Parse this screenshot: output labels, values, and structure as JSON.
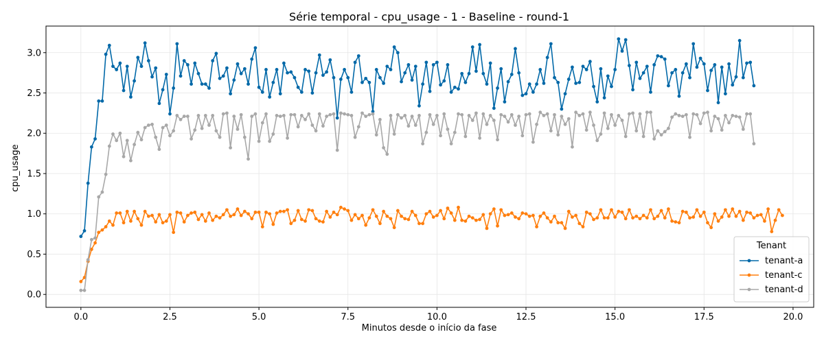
{
  "chart_data": {
    "type": "line",
    "title": "Série temporal - cpu_usage - 1 - Baseline - round-1",
    "xlabel": "Minutos desde o início da fase",
    "ylabel": "cpu_usage",
    "xlim": [
      -0.98,
      20.58
    ],
    "ylim": [
      -0.16,
      3.33
    ],
    "xticks": [
      0,
      2.5,
      5,
      7.5,
      10,
      12.5,
      15,
      17.5,
      20
    ],
    "xtick_labels": [
      "0.0",
      "2.5",
      "5.0",
      "7.5",
      "10.0",
      "12.5",
      "15.0",
      "17.5",
      "20.0"
    ],
    "yticks": [
      0,
      0.5,
      1,
      1.5,
      2,
      2.5,
      3
    ],
    "ytick_labels": [
      "0.0",
      "0.5",
      "1.0",
      "1.5",
      "2.0",
      "2.5",
      "3.0"
    ],
    "grid": true,
    "legend": {
      "title": "Tenant",
      "position": "lower-right"
    },
    "x_step": 0.1,
    "series": [
      {
        "name": "tenant-a",
        "color": "#0068a8",
        "values": [
          0.72,
          0.79,
          1.38,
          1.83,
          1.93,
          2.4,
          2.4,
          2.98,
          3.09,
          2.83,
          2.79,
          2.87,
          2.53,
          2.83,
          2.45,
          2.65,
          2.94,
          2.83,
          3.12,
          2.9,
          2.7,
          2.81,
          2.37,
          2.54,
          2.73,
          2.24,
          2.56,
          3.11,
          2.71,
          2.9,
          2.85,
          2.61,
          2.87,
          2.74,
          2.61,
          2.61,
          2.56,
          2.9,
          2.99,
          2.68,
          2.71,
          2.81,
          2.49,
          2.66,
          2.86,
          2.74,
          2.8,
          2.61,
          2.92,
          3.06,
          2.57,
          2.51,
          2.79,
          2.45,
          2.63,
          2.79,
          2.49,
          2.87,
          2.75,
          2.76,
          2.69,
          2.57,
          2.51,
          2.79,
          2.77,
          2.5,
          2.75,
          2.97,
          2.72,
          2.76,
          2.91,
          2.69,
          2.19,
          2.67,
          2.79,
          2.69,
          2.51,
          2.88,
          2.96,
          2.63,
          2.68,
          2.63,
          2.27,
          2.79,
          2.69,
          2.62,
          2.83,
          2.79,
          3.07,
          3.0,
          2.64,
          2.75,
          2.85,
          2.66,
          2.83,
          2.34,
          2.61,
          2.88,
          2.52,
          2.85,
          2.88,
          2.6,
          2.65,
          2.85,
          2.51,
          2.57,
          2.55,
          2.74,
          2.63,
          2.74,
          3.07,
          2.77,
          3.1,
          2.74,
          2.61,
          2.87,
          2.31,
          2.56,
          2.8,
          2.39,
          2.64,
          2.73,
          3.05,
          2.75,
          2.47,
          2.49,
          2.61,
          2.51,
          2.61,
          2.79,
          2.62,
          2.94,
          3.11,
          2.69,
          2.63,
          2.3,
          2.49,
          2.67,
          2.82,
          2.62,
          2.63,
          2.83,
          2.79,
          2.89,
          2.58,
          2.39,
          2.8,
          2.44,
          2.71,
          2.58,
          2.79,
          3.17,
          3.02,
          3.16,
          2.84,
          2.54,
          2.88,
          2.68,
          2.75,
          2.83,
          2.51,
          2.85,
          2.96,
          2.95,
          2.92,
          2.59,
          2.75,
          2.79,
          2.46,
          2.75,
          2.86,
          2.69,
          3.11,
          2.82,
          2.93,
          2.86,
          2.53,
          2.78,
          2.85,
          2.38,
          2.82,
          2.49,
          2.86,
          2.6,
          2.7,
          3.15,
          2.69,
          2.87,
          2.88,
          2.59
        ]
      },
      {
        "name": "tenant-c",
        "color": "#ff7f0e",
        "values": [
          0.16,
          0.21,
          0.41,
          0.56,
          0.64,
          0.77,
          0.8,
          0.84,
          0.91,
          0.86,
          1.01,
          1.01,
          0.89,
          1.03,
          0.91,
          1.03,
          0.94,
          0.86,
          1.03,
          0.97,
          0.98,
          0.9,
          0.99,
          0.89,
          0.91,
          0.99,
          0.77,
          1.02,
          1.01,
          0.9,
          0.98,
          1.01,
          1.02,
          0.93,
          0.99,
          0.91,
          1.01,
          0.92,
          0.97,
          0.95,
          0.99,
          1.05,
          0.97,
          0.99,
          1.06,
          0.98,
          1.03,
          1.0,
          0.94,
          1.02,
          1.02,
          0.84,
          1.02,
          1.0,
          0.87,
          1.01,
          1.03,
          1.03,
          1.05,
          0.88,
          0.92,
          1.04,
          0.93,
          0.91,
          1.05,
          1.04,
          0.94,
          0.91,
          0.9,
          1.03,
          0.96,
          1.02,
          0.99,
          1.08,
          1.06,
          1.04,
          0.92,
          0.99,
          0.94,
          0.98,
          0.86,
          0.95,
          1.05,
          0.97,
          0.88,
          1.03,
          0.97,
          0.94,
          0.83,
          1.04,
          0.97,
          0.94,
          0.93,
          1.03,
          0.98,
          0.88,
          0.88,
          1.0,
          1.03,
          0.96,
          0.98,
          1.04,
          0.94,
          1.07,
          1.01,
          0.92,
          1.08,
          0.92,
          0.91,
          0.97,
          0.95,
          0.92,
          0.93,
          0.99,
          0.82,
          1.0,
          1.06,
          0.85,
          1.05,
          0.98,
          0.99,
          1.01,
          0.96,
          0.94,
          1.01,
          1.0,
          0.97,
          0.98,
          0.84,
          0.97,
          1.01,
          0.95,
          0.9,
          0.97,
          0.89,
          0.89,
          0.82,
          1.03,
          0.96,
          0.98,
          0.88,
          0.84,
          1.02,
          1.0,
          0.93,
          0.95,
          1.05,
          0.95,
          0.95,
          1.05,
          0.96,
          1.03,
          1.02,
          0.94,
          1.05,
          0.95,
          0.97,
          0.94,
          0.98,
          0.95,
          1.05,
          0.94,
          0.97,
          1.04,
          0.95,
          1.06,
          0.91,
          0.9,
          0.89,
          1.03,
          1.02,
          0.95,
          0.96,
          1.05,
          0.97,
          1.02,
          0.89,
          0.83,
          1.0,
          0.91,
          0.96,
          1.05,
          0.97,
          1.06,
          0.97,
          1.03,
          0.92,
          1.02,
          1.01,
          0.95,
          0.98,
          0.99,
          0.91,
          1.06,
          0.78,
          0.92,
          1.05,
          0.98
        ]
      },
      {
        "name": "tenant-d",
        "color": "#a8a8a8",
        "values": [
          0.05,
          0.05,
          0.43,
          0.68,
          0.7,
          1.21,
          1.27,
          1.49,
          1.84,
          1.99,
          1.91,
          2.0,
          1.71,
          1.91,
          1.66,
          1.86,
          2.01,
          1.92,
          2.07,
          2.1,
          2.11,
          1.95,
          1.8,
          2.07,
          2.1,
          1.97,
          2.03,
          2.22,
          2.17,
          2.21,
          2.21,
          1.93,
          2.04,
          2.22,
          2.06,
          2.22,
          2.1,
          2.22,
          2.03,
          1.95,
          2.24,
          2.25,
          1.82,
          2.21,
          2.05,
          2.23,
          1.95,
          1.68,
          2.21,
          2.24,
          1.9,
          2.13,
          2.24,
          1.9,
          1.99,
          2.22,
          2.21,
          2.22,
          1.94,
          2.23,
          2.23,
          2.08,
          2.22,
          2.17,
          2.24,
          2.1,
          2.03,
          2.24,
          2.09,
          2.21,
          2.23,
          2.24,
          1.79,
          2.25,
          2.24,
          2.23,
          2.22,
          1.95,
          2.08,
          2.25,
          2.21,
          2.23,
          2.24,
          1.98,
          2.17,
          1.82,
          1.74,
          2.22,
          1.99,
          2.23,
          2.19,
          2.22,
          2.09,
          2.21,
          2.1,
          2.22,
          1.87,
          2.01,
          2.23,
          2.11,
          2.22,
          1.97,
          2.24,
          2.05,
          1.87,
          2.01,
          2.24,
          2.23,
          1.96,
          2.22,
          2.16,
          2.25,
          1.94,
          2.24,
          2.11,
          2.22,
          2.16,
          1.92,
          2.23,
          2.21,
          2.14,
          2.23,
          2.1,
          2.21,
          1.97,
          2.23,
          2.24,
          1.89,
          2.11,
          2.26,
          2.22,
          2.24,
          2.03,
          2.23,
          1.98,
          2.21,
          2.11,
          2.18,
          1.83,
          2.26,
          2.22,
          2.24,
          2.04,
          2.26,
          2.1,
          1.91,
          1.99,
          2.25,
          2.06,
          2.23,
          2.1,
          2.22,
          2.16,
          1.96,
          2.24,
          2.25,
          2.03,
          2.24,
          1.96,
          2.26,
          2.26,
          1.93,
          2.03,
          1.98,
          2.02,
          2.06,
          2.2,
          2.24,
          2.22,
          2.21,
          2.23,
          1.95,
          2.24,
          2.23,
          2.12,
          2.25,
          2.26,
          2.03,
          2.21,
          2.18,
          2.04,
          2.22,
          2.13,
          2.22,
          2.21,
          2.2,
          2.05,
          2.24,
          2.24,
          1.87
        ]
      }
    ]
  }
}
